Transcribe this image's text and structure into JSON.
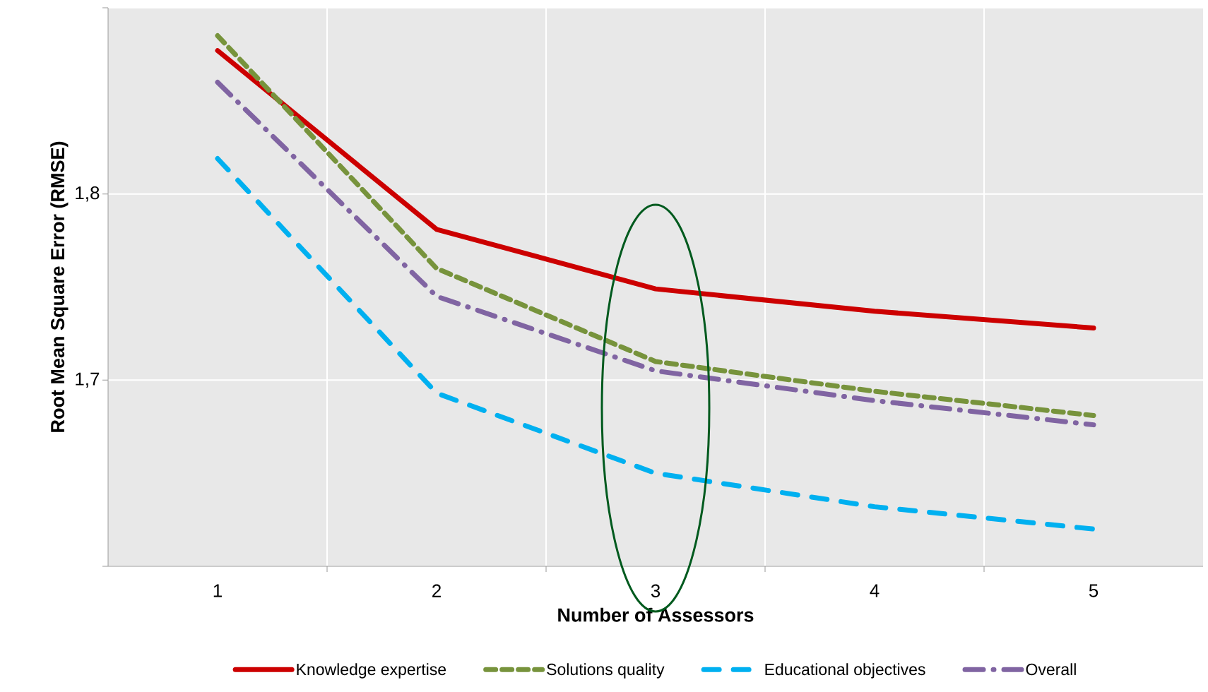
{
  "chart_data": {
    "type": "line",
    "xlabel": "Number of Assessors",
    "ylabel": "Root Mean Square Error (RMSE)",
    "categories": [
      "1",
      "2",
      "3",
      "4",
      "5"
    ],
    "ylim": [
      1.6,
      1.9
    ],
    "yticks": [
      {
        "value": 1.6,
        "label": null
      },
      {
        "value": 1.7,
        "label": "1,7"
      },
      {
        "value": 1.8,
        "label": "1,8"
      },
      {
        "value": 1.9,
        "label": null
      }
    ],
    "grid": true,
    "legend": "bottom",
    "series": [
      {
        "name": "Knowledge expertise",
        "color": "#cc0000",
        "line_style": "solid",
        "values": [
          1.877,
          1.781,
          1.749,
          1.737,
          1.728
        ]
      },
      {
        "name": "Solutions quality",
        "color": "#77933c",
        "line_style": "dashed",
        "values": [
          1.885,
          1.76,
          1.71,
          1.694,
          1.681
        ]
      },
      {
        "name": "Educational objectives",
        "color": "#00b0f0",
        "line_style": "dashed",
        "values": [
          1.819,
          1.693,
          1.65,
          1.632,
          1.62
        ]
      },
      {
        "name": "Overall",
        "color": "#8064a2",
        "line_style": "dashdot",
        "values": [
          1.86,
          1.745,
          1.705,
          1.689,
          1.676
        ]
      }
    ]
  }
}
